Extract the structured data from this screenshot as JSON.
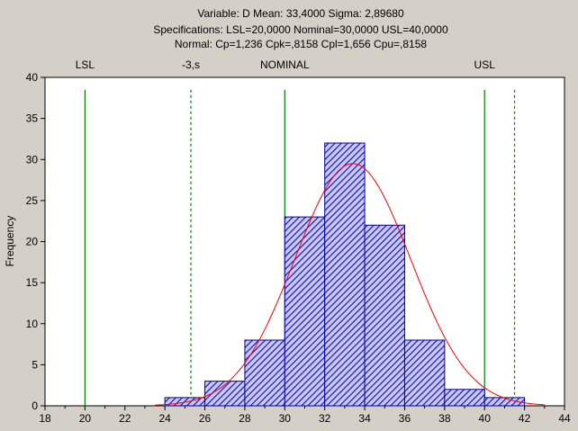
{
  "header": {
    "line1": "Variable: D   Mean: 33,4000   Sigma: 2,89680",
    "line2": "Specifications: LSL=20,0000 Nominal=30,0000 USL=40,0000",
    "line3": "Normal: Cp=1,236 Cpk=,8158 Cpl=1,656 Cpu=,8158"
  },
  "chart_data": {
    "type": "bar",
    "subtype": "process-capability histogram",
    "ylabel": "Frequency",
    "xlim": [
      18,
      44
    ],
    "ylim": [
      0,
      40
    ],
    "xticks": [
      "18",
      "20",
      "22",
      "24",
      "26",
      "28",
      "30",
      "32",
      "34",
      "36",
      "38",
      "40",
      "42",
      "44"
    ],
    "yticks": [
      "0",
      "5",
      "10",
      "15",
      "20",
      "25",
      "30",
      "35",
      "40"
    ],
    "bin_width": 2,
    "bins": [
      {
        "x0": 24,
        "x1": 26,
        "value": 1
      },
      {
        "x0": 26,
        "x1": 28,
        "value": 3
      },
      {
        "x0": 28,
        "x1": 30,
        "value": 8
      },
      {
        "x0": 30,
        "x1": 32,
        "value": 23
      },
      {
        "x0": 32,
        "x1": 34,
        "value": 32
      },
      {
        "x0": 34,
        "x1": 36,
        "value": 22
      },
      {
        "x0": 36,
        "x1": 38,
        "value": 8
      },
      {
        "x0": 38,
        "x1": 40,
        "value": 2
      },
      {
        "x0": 40,
        "x1": 42,
        "value": 1
      }
    ],
    "normal_curve": {
      "mean": 33.4,
      "sigma": 2.8968,
      "peak": 29.5
    },
    "spec_lines": [
      {
        "label": "LSL",
        "x": 20,
        "style": "solid"
      },
      {
        "label": "-3,s",
        "x": 25.3,
        "style": "dashed"
      },
      {
        "label": "NOMINAL",
        "x": 30,
        "style": "solid"
      },
      {
        "label": "USL",
        "x": 40,
        "style": "solid"
      },
      {
        "label": "",
        "x": 41.5,
        "style": "dashed"
      }
    ],
    "colors": {
      "bar_fill": "#c8c8ff",
      "bar_hatch": "#1a1aa0",
      "bar_edge": "#0000a0",
      "curve": "#ff0000",
      "spec_line": "#008000",
      "background": "#d4d0c8",
      "plot_background": "#ffffff"
    },
    "grid": false
  }
}
